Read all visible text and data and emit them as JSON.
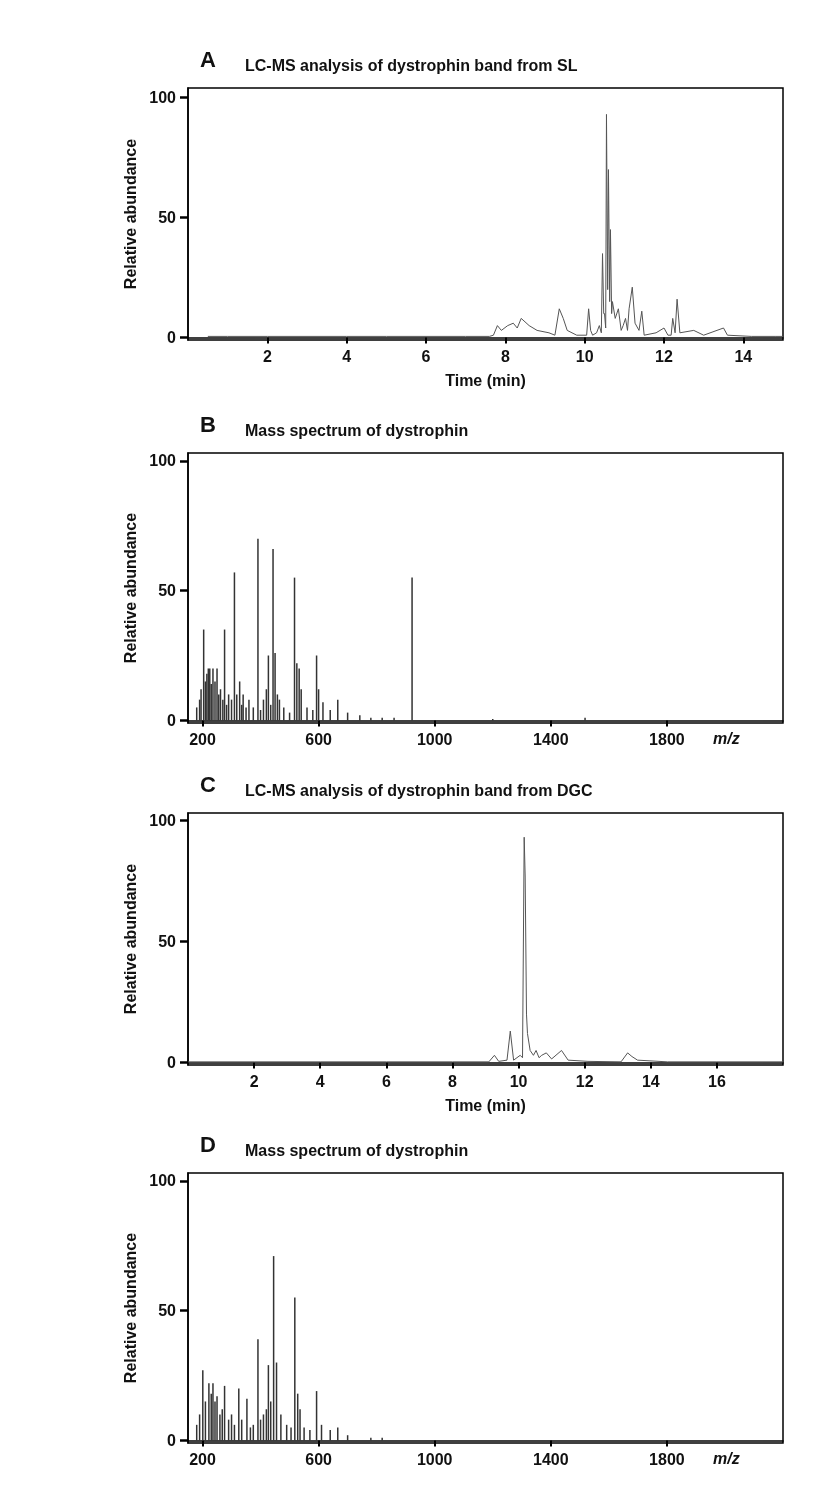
{
  "chart_data": [
    {
      "type": "line",
      "title": "LC-MS analysis of dystrophin band from SL",
      "annotations": [
        "A"
      ],
      "xlabel": "Time (min)",
      "ylabel": "Relative abundance",
      "color": "#555555",
      "marker": "none",
      "x": [
        0.5,
        1,
        2,
        3,
        4,
        5,
        6,
        7,
        7.6,
        7.7,
        7.8,
        7.9,
        8.06,
        8.2,
        8.3,
        8.4,
        8.6,
        8.8,
        9.1,
        9.25,
        9.36,
        9.46,
        9.56,
        9.8,
        10.05,
        10.1,
        10.15,
        10.2,
        10.3,
        10.37,
        10.42,
        10.45,
        10.48,
        10.5,
        10.53,
        10.55,
        10.58,
        10.6,
        10.63,
        10.65,
        10.68,
        10.7,
        10.77,
        10.85,
        10.92,
        10.97,
        11.03,
        11.08,
        11.12,
        11.2,
        11.27,
        11.37,
        11.44,
        11.5,
        11.8,
        12.0,
        12.1,
        12.18,
        12.22,
        12.28,
        12.33,
        12.4,
        12.75,
        13.0,
        13.5,
        13.6,
        14.2,
        14.8,
        15
      ],
      "values": [
        0.5,
        0.5,
        0.5,
        0.5,
        0.5,
        0.5,
        0.5,
        0.5,
        0.5,
        1,
        5,
        3,
        5,
        6,
        4,
        8,
        5,
        3,
        2,
        1,
        12,
        8,
        3,
        1,
        1,
        12,
        3,
        1,
        2,
        5,
        2,
        35,
        10,
        10,
        4,
        93,
        20,
        70,
        15,
        45,
        10,
        15,
        8,
        12,
        3,
        5,
        8,
        3,
        12,
        21,
        6,
        3,
        11,
        1,
        2,
        4,
        1,
        1,
        8,
        2,
        16,
        2,
        3,
        1,
        4,
        1,
        0.5,
        0.5,
        0.5
      ],
      "xlim": [
        0,
        15
      ],
      "xticks": [
        2,
        4,
        6,
        8,
        10,
        12,
        14
      ],
      "ylim": [
        -1,
        104
      ],
      "yticks": [
        0,
        50,
        100
      ],
      "grid": false
    },
    {
      "type": "bar",
      "title": "Mass spectrum of dystrophin",
      "annotations": [
        "B"
      ],
      "xlabel": "m/z",
      "ylabel": "Relative abundance",
      "color": "#333333",
      "x": [
        180,
        190,
        195,
        204,
        210,
        215,
        220,
        225,
        230,
        236,
        243,
        250,
        256,
        262,
        270,
        276,
        283,
        290,
        300,
        310,
        318,
        328,
        335,
        340,
        350,
        360,
        375,
        391,
        400,
        410,
        420,
        427,
        435,
        443,
        450,
        458,
        465,
        480,
        500,
        517,
        525,
        533,
        540,
        560,
        580,
        593,
        600,
        615,
        640,
        666,
        700,
        742,
        780,
        819,
        860,
        922,
        1000,
        1200,
        1518
      ],
      "values": [
        5,
        8,
        12,
        35,
        15,
        18,
        20,
        20,
        14,
        20,
        15,
        20,
        10,
        12,
        8,
        35,
        6,
        10,
        8,
        57,
        10,
        15,
        6,
        10,
        5,
        8,
        5,
        70,
        4,
        8,
        12,
        25,
        6,
        66,
        26,
        10,
        8,
        5,
        3,
        55,
        22,
        20,
        12,
        5,
        4,
        25,
        12,
        7,
        4,
        8,
        3,
        2,
        1,
        1,
        1,
        55,
        null,
        0.5,
        1
      ],
      "xlim": [
        150,
        2200
      ],
      "xticks": [
        200,
        600,
        1000,
        1400,
        1800
      ],
      "ylim": [
        -1,
        103
      ],
      "yticks": [
        0,
        50,
        100
      ],
      "grid": false
    },
    {
      "type": "line",
      "title": "LC-MS analysis of dystrophin band from DGC",
      "annotations": [
        "C"
      ],
      "xlabel": "Time (min)",
      "ylabel": "Relative abundance",
      "color": "#555555",
      "marker": "none",
      "x": [
        0,
        2,
        4,
        6,
        8,
        9.1,
        9.27,
        9.4,
        9.65,
        9.75,
        9.85,
        10.05,
        10.12,
        10.17,
        10.2,
        10.24,
        10.27,
        10.35,
        10.45,
        10.53,
        10.62,
        10.7,
        10.84,
        11.0,
        11.3,
        11.5,
        12.1,
        13.1,
        13.3,
        13.43,
        13.6,
        14.5,
        16,
        18
      ],
      "values": [
        0.3,
        0.3,
        0.3,
        0.3,
        0.3,
        0.3,
        3,
        0.5,
        1,
        13,
        1,
        3,
        2,
        93,
        77,
        20,
        12,
        5,
        3,
        5,
        2,
        3,
        4,
        1.5,
        5,
        1,
        0.5,
        0.3,
        4,
        2.5,
        1,
        0.3,
        0.3,
        0.3
      ],
      "xlim": [
        0,
        18
      ],
      "xticks": [
        2,
        4,
        6,
        8,
        10,
        12,
        14,
        16
      ],
      "ylim": [
        -1,
        103
      ],
      "yticks": [
        0,
        50,
        100
      ],
      "grid": false
    },
    {
      "type": "bar",
      "title": "Mass spectrum of dystrophin",
      "annotations": [
        "D"
      ],
      "xlabel": "m/z",
      "ylabel": "Relative abundance",
      "color": "#333333",
      "x": [
        180,
        190,
        201,
        210,
        222,
        230,
        236,
        243,
        250,
        260,
        268,
        276,
        290,
        300,
        310,
        325,
        335,
        353,
        365,
        375,
        391,
        400,
        410,
        420,
        427,
        435,
        445,
        455,
        470,
        490,
        505,
        518,
        528,
        536,
        550,
        570,
        593,
        610,
        640,
        666,
        700,
        741,
        780,
        819
      ],
      "values": [
        6,
        10,
        27,
        15,
        22,
        18,
        22,
        15,
        17,
        10,
        12,
        21,
        8,
        10,
        6,
        20,
        8,
        16,
        5,
        6,
        39,
        8,
        10,
        12,
        29,
        15,
        71,
        30,
        10,
        6,
        5,
        55,
        18,
        12,
        5,
        4,
        19,
        6,
        4,
        5,
        2,
        null,
        1,
        1
      ],
      "xlim": [
        150,
        2200
      ],
      "xticks": [
        200,
        600,
        1000,
        1400,
        1800
      ],
      "ylim": [
        -1,
        103
      ],
      "yticks": [
        0,
        50,
        100
      ],
      "grid": false
    }
  ]
}
